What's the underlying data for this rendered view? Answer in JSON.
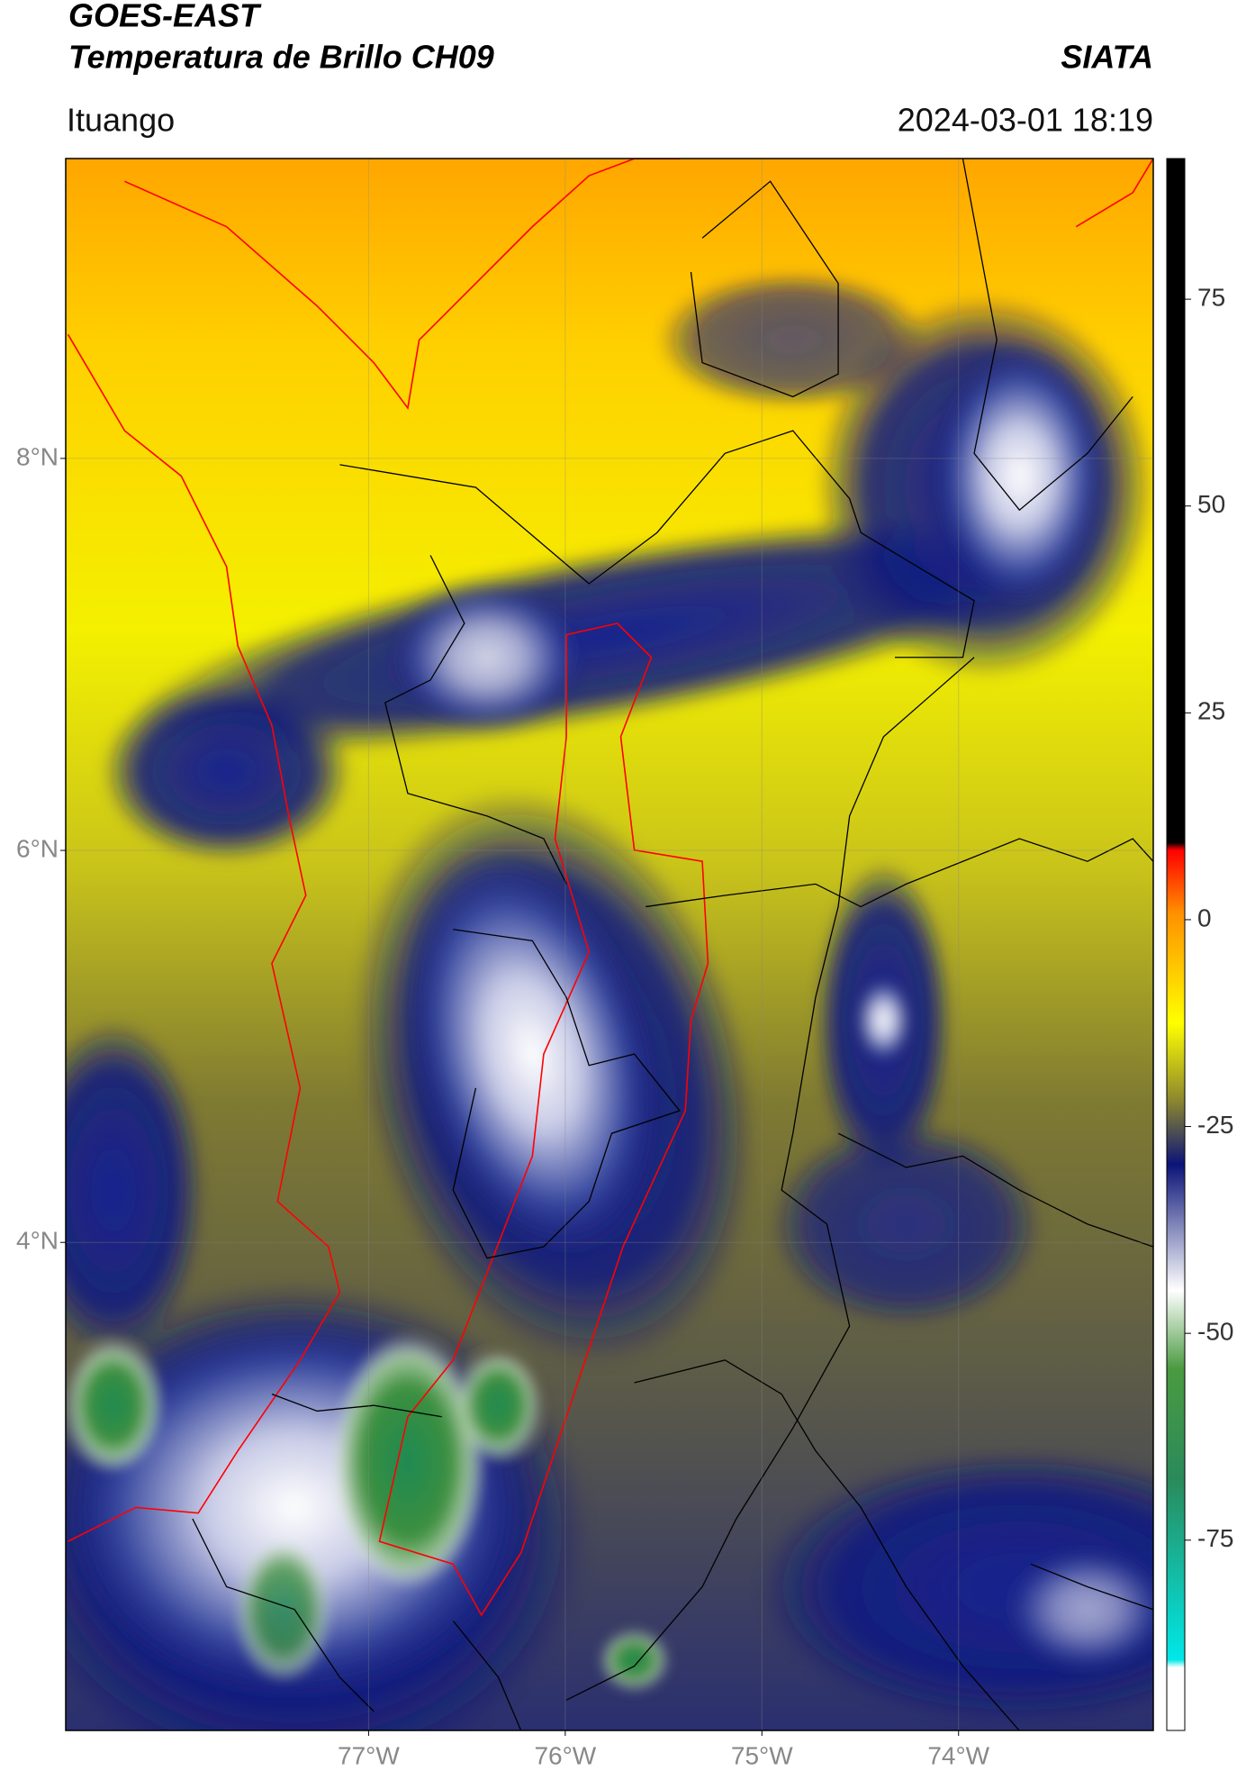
{
  "header": {
    "title_line1": "GOES-EAST",
    "title_line2": "Temperatura de Brillo CH09",
    "brand": "SIATA",
    "location": "Ituango",
    "datetime": "2024-03-01 18:19"
  },
  "map": {
    "xlim": [
      -78.54,
      -73.01
    ],
    "ylim": [
      1.51,
      9.53
    ],
    "grid": true,
    "xticks": [
      {
        "value": -77,
        "label": "77°W"
      },
      {
        "value": -76,
        "label": "76°W"
      },
      {
        "value": -75,
        "label": "75°W"
      },
      {
        "value": -74,
        "label": "74°W"
      }
    ],
    "yticks": [
      {
        "value": 8,
        "label": "8°N"
      },
      {
        "value": 6,
        "label": "6°N"
      },
      {
        "value": 4,
        "label": "4°N"
      }
    ]
  },
  "colorbar": {
    "ylim": [
      -98,
      92
    ],
    "ticks": [
      75,
      50,
      25,
      0,
      -25,
      -50,
      -75
    ]
  }
}
